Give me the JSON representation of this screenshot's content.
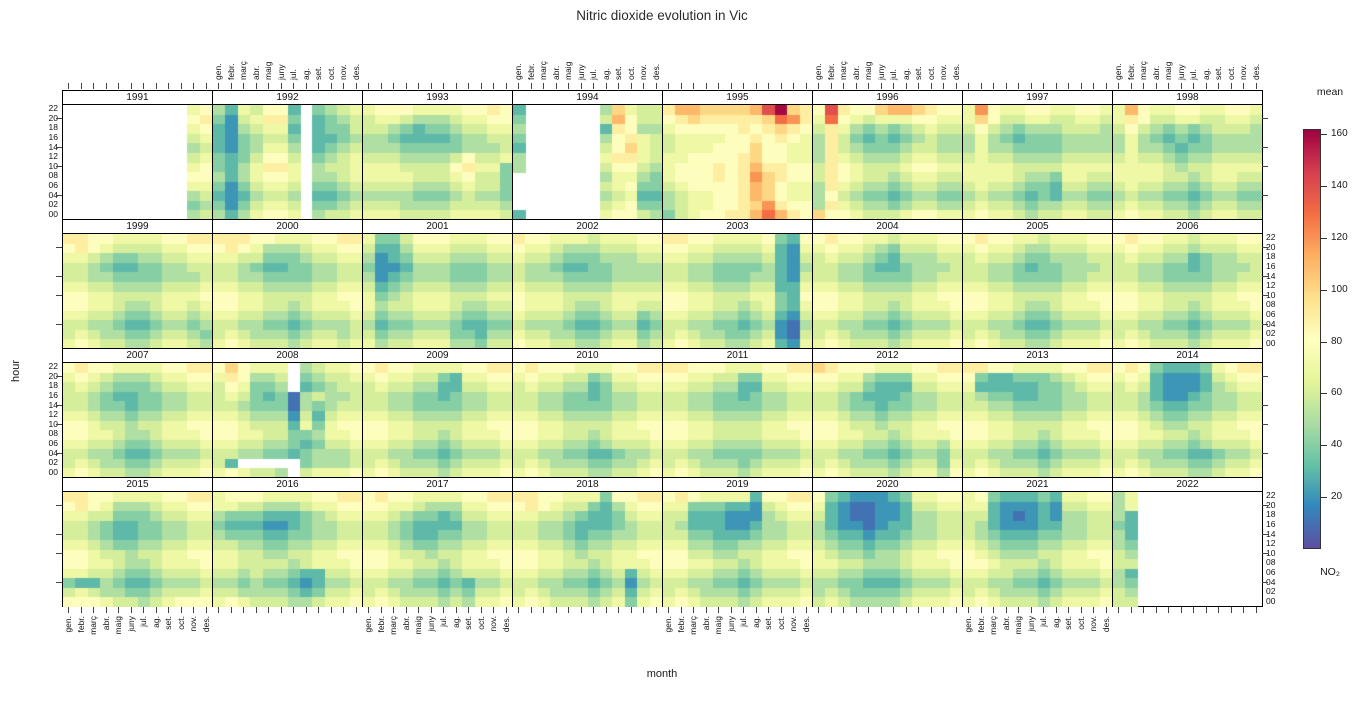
{
  "title": "Nitric dioxide evolution in Vic",
  "axes": {
    "x_label": "month",
    "y_label": "hour"
  },
  "legend": {
    "title": "mean",
    "unit": "NO₂",
    "ticks": [
      20,
      40,
      60,
      80,
      100,
      120,
      140,
      160
    ],
    "domain": [
      0,
      162
    ],
    "colors": [
      "#5e4fa2",
      "#3288bd",
      "#66c2a5",
      "#abdda4",
      "#e6f598",
      "#ffffbf",
      "#fee08b",
      "#fdae61",
      "#f46d43",
      "#d53e4f",
      "#9e0142"
    ]
  },
  "layout_hints": {
    "panels_per_row": 8,
    "top_month_label_columns": [
      1,
      3,
      5,
      7
    ],
    "bottom_month_label_columns": [
      0,
      2,
      4,
      6
    ],
    "hour_labels_left_rows": [
      0,
      2
    ],
    "hour_labels_right_rows": [
      1,
      3
    ],
    "hour_tick_indices": [
      1,
      4,
      6,
      9
    ],
    "grid": false,
    "legend_position": "right"
  },
  "chart_data": {
    "type": "heatmap",
    "title": "Nitric dioxide evolution in Vic",
    "xlabel": "month",
    "ylabel": "hour",
    "x_categories": [
      "gen.",
      "febr.",
      "març",
      "abr.",
      "maig",
      "juny",
      "jul.",
      "ag.",
      "set.",
      "oct.",
      "nov.",
      "des."
    ],
    "y_categories": [
      "22",
      "20",
      "18",
      "16",
      "14",
      "12",
      "10",
      "08",
      "06",
      "04",
      "02",
      "00"
    ],
    "value_encoding": {
      "scheme": "hex-digit per cell",
      "formula": "NO2 mean = 10 + 10 * parseInt(char, 16)",
      "missing_char": ".",
      "rows_order": "hour 22 (top) to hour 00 (bottom)",
      "columns_order": "gen. to des."
    },
    "years": [
      {
        "year": "1991",
        "grid": [
          "..........67",
          "..........78",
          "..........67",
          "..........56",
          "..........45",
          "..........56",
          "..........67",
          "..........77",
          "..........66",
          "..........45",
          "..........34",
          "..........45"
        ]
      },
      {
        "year": "1992",
        "grid": [
          "4265772.3456",
          "3156883.2345",
          "2145662.2335",
          "2134553.2234",
          "2134664.2345",
          "3235775.3456",
          "3246886.4556",
          "4246776.4456",
          "3135665.3345",
          "2124554.2234",
          "3135665.3345",
          "4246776.4556"
        ]
      },
      {
        "year": "1993",
        "grid": [
          "677766667787",
          "566544456677",
          "554323345566",
          "443222234455",
          "444333334445",
          "555444457556",
          "666555578663",
          "666655567553",
          "555544456553",
          "444433345443",
          "555444455554",
          "666555566665"
        ]
      },
      {
        "year": "1994",
        "grid": [
          "2......49655",
          "3......5a755",
          "4......28744",
          "3......47865",
          "2......57965",
          "4......68865",
          "4......57754",
          ".......46643",
          ".......56733",
          ".......45622",
          ".......56733",
          "2......67754"
        ]
      },
      {
        "year": "1995",
        "grid": [
          "8aa9999adf98",
          "789888889cb8",
          "677777878987",
          "566667787876",
          "566677797766",
          "667777897766",
          "6777878a8877",
          "6777878b9877",
          "5677778a9766",
          "4566778a9766",
          "45667789b877",
          "3567788aca87"
        ]
      },
      {
        "year": "1996",
        "grid": [
          "7d8779aa9877",
          "6c7656667766",
          "586434345655",
          "485323234544",
          "485433345544",
          "486544456655",
          "587655567766",
          "587655456655",
          "486544345544",
          "475433234433",
          "486544345544",
          "977655567766"
        ]
      },
      {
        "year": "1997",
        "grid": [
          "6b7667766776",
          "697556655665",
          "575434445554",
          "464323334444",
          "464433334444",
          "565544445555",
          "666655556666",
          "666654436655",
          "565543325544",
          "454432324433",
          "565543445544",
          "676654556655"
        ]
      },
      {
        "year": "1998",
        "grid": [
          "6a7667766776",
          "687556655665",
          "575434345554",
          "464323234444",
          "464432334444",
          "565543445555",
          "666654556666",
          "666655456655",
          "565544345544",
          "454433234433",
          "565544345544",
          "676655456655"
        ]
      },
      {
        "year": "1999",
        "grid": [
          "887766667788",
          "787655556677",
          "665433445566",
          "554322334455",
          "554433334445",
          "665544445556",
          "776655556667",
          "776654456656",
          "665543345545",
          "554432234434",
          "565443345543",
          "676554456654"
        ]
      },
      {
        "year": "2000",
        "grid": [
          "888776667788",
          "787644456677",
          "665533345566",
          "554322334455",
          "554433334455",
          "665544445566",
          "776655556677",
          "776655456667",
          "665544345556",
          "554433234445",
          "565444345545",
          "676555456656"
        ]
      },
      {
        "year": "2001",
        "grid": [
          "633577766677",
          "522466655566",
          "412355544455",
          "311244433344",
          "412344433344",
          "523455544455",
          "634566655566",
          "645566654455",
          "534455543344",
          "423344432233",
          "534455533244",
          "645566644355"
        ]
      },
      {
        "year": "2002",
        "grid": [
          "877666566677",
          "766544455566",
          "655433344455",
          "544322334444",
          "544433334444",
          "655544445555",
          "766655556666",
          "766654456655",
          "655543345534",
          "544432234423",
          "655443345534",
          "766554456645"
        ]
      },
      {
        "year": "2003",
        "grid": [
          "887766667327",
          "776655556216",
          "665544445215",
          "554433334214",
          "554433344215",
          "665544455226",
          "776655566327",
          "776655456326",
          "665544345215",
          "554433234104",
          "565443345105",
          "676554456216"
        ]
      },
      {
        "year": "2004",
        "grid": [
          "787766566677",
          "676654355566",
          "565543244455",
          "554432234445",
          "554433334455",
          "665544445566",
          "776655556677",
          "776655456667",
          "665544345556",
          "554433234445",
          "565444345556",
          "676555456667"
        ]
      },
      {
        "year": "2005",
        "grid": [
          "787766566677",
          "676654455566",
          "565543344455",
          "554432334445",
          "554433334455",
          "665544445566",
          "776655556677",
          "776654456667",
          "665543345556",
          "554432234445",
          "565443345556",
          "676554456667"
        ]
      },
      {
        "year": "2006",
        "grid": [
          "787766566677",
          "676655455566",
          "565544234455",
          "554433234445",
          "554433334455",
          "665544445566",
          "776655556677",
          "776655456667",
          "665544345556",
          "554433234445",
          "565444345556",
          "676555456667"
        ]
      },
      {
        "year": "2007",
        "grid": [
          "787766667788",
          "676544456677",
          "565433345566",
          "554322334455",
          "554332334455",
          "665443445566",
          "776554556677",
          "776654456667",
          "665543345556",
          "554432234445",
          "565443345556",
          "676554456667"
        ]
      },
      {
        "year": "2008",
        "grid": [
          "797666.45667",
          "687445.34556",
          "576334.23455",
          "565323045445",
          "554333043455",
          "665444152566",
          "776555263677",
          "776655334667",
          "665544323556",
          "554433234445",
          "52.....34445",
          "676554.56667"
        ]
      },
      {
        "year": "2009",
        "grid": [
          "787766667788",
          "676655326677",
          "565544225566",
          "554433234455",
          "554433334455",
          "665544445566",
          "776655556677",
          "776655456667",
          "665544345556",
          "554433234445",
          "565444345556",
          "676555456667"
        ]
      },
      {
        "year": "2010",
        "grid": [
          "787776667788",
          "676655346677",
          "565544235566",
          "554433234455",
          "554433334455",
          "665544445566",
          "776655556677",
          "776655456667",
          "665544345556",
          "554433223445",
          "565444334456",
          "676555445567"
        ]
      },
      {
        "year": "2011",
        "grid": [
          "887776667788",
          "776655336677",
          "665544225566",
          "554433234455",
          "554433334455",
          "665544445566",
          "776655556677",
          "776655556667",
          "665544445556",
          "554433334445",
          "565444345556",
          "676555456667"
        ]
      },
      {
        "year": "2012",
        "grid": [
          "987776667788",
          "776643336677",
          "665532225566",
          "554322234455",
          "554332334455",
          "665443445566",
          "776554556677",
          "776655456667",
          "665544345546",
          "554433234435",
          "565444345536",
          "676555456647"
        ]
      },
      {
        "year": "2013",
        "grid": [
          "887766667788",
          "732233345677",
          "622222334566",
          "543322334455",
          "554433334455",
          "665544445566",
          "776655556677",
          "776655456667",
          "665544345556",
          "554433234445",
          "565444345556",
          "676555456667"
        ]
      },
      {
        "year": "2014",
        "grid": [
          "787322236788",
          "676211125677",
          "565211124566",
          "554211234455",
          "554322334455",
          "665433445566",
          "776544556677",
          "776655456667",
          "665544345556",
          "554433223445",
          "565444334556",
          "676555445667"
        ]
      },
      {
        "year": "2015",
        "grid": [
          "887766667788",
          "787644456677",
          "665533345566",
          "554322334455",
          "554322334455",
          "665433445566",
          "776554556677",
          "776654456667",
          "665543345556",
          "322432234445",
          "565443345556",
          "777655456777"
        ]
      },
      {
        "year": "2016",
        "grid": [
          "677766667788",
          "665544456677",
          "433322234566",
          "322211234455",
          "433322334455",
          "554433445566",
          "665544556677",
          "665555456667",
          "554544322556",
          "443433212445",
          "554444323556",
          "676555445667"
        ]
      },
      {
        "year": "2017",
        "grid": [
          "787766667788",
          "776654446677",
          "665433235566",
          "554322224455",
          "554322334455",
          "665433445566",
          "776554556677",
          "776655456667",
          "665544345556",
          "554433232445",
          "565444343556",
          "676555454667"
        ]
      },
      {
        "year": "2018",
        "grid": [
          "887766637788",
          "787655324677",
          "665543223566",
          "554432223455",
          "554432334455",
          "665543445566",
          "776654556677",
          "776655456667",
          "665544345256",
          "554433234145",
          "565444345256",
          "676555456367"
        ]
      },
      {
        "year": "2019",
        "grid": [
          "787666627788",
          "663332215677",
          "552221114566",
          "542221124455",
          "553322234455",
          "664433445566",
          "775544556677",
          "776655456667",
          "665544345556",
          "554433234445",
          "565444345556",
          "676555456667"
        ]
      },
      {
        "year": "2020",
        "grid": [
          "732111236677",
          "621001125566",
          "521001124455",
          "421101224455",
          "432212234455",
          "543323345566",
          "654434456677",
          "665544456667",
          "554433345556",
          "443322234445",
          "454333345556",
          "565444456667"
        ]
      },
      {
        "year": "2021",
        "grid": [
          "673222326677",
          "662111215566",
          "552101214455",
          "542111224455",
          "543222334455",
          "654333445566",
          "765444556677",
          "776555456667",
          "665544345556",
          "554433234445",
          "565444345556",
          "676555456667"
        ]
      },
      {
        "year": "2022",
        "grid": [
          "46..........",
          "46..........",
          "42..........",
          "32..........",
          "42..........",
          "43..........",
          "54..........",
          "55..........",
          "42..........",
          "43..........",
          "54..........",
          "55.........."
        ]
      }
    ]
  }
}
